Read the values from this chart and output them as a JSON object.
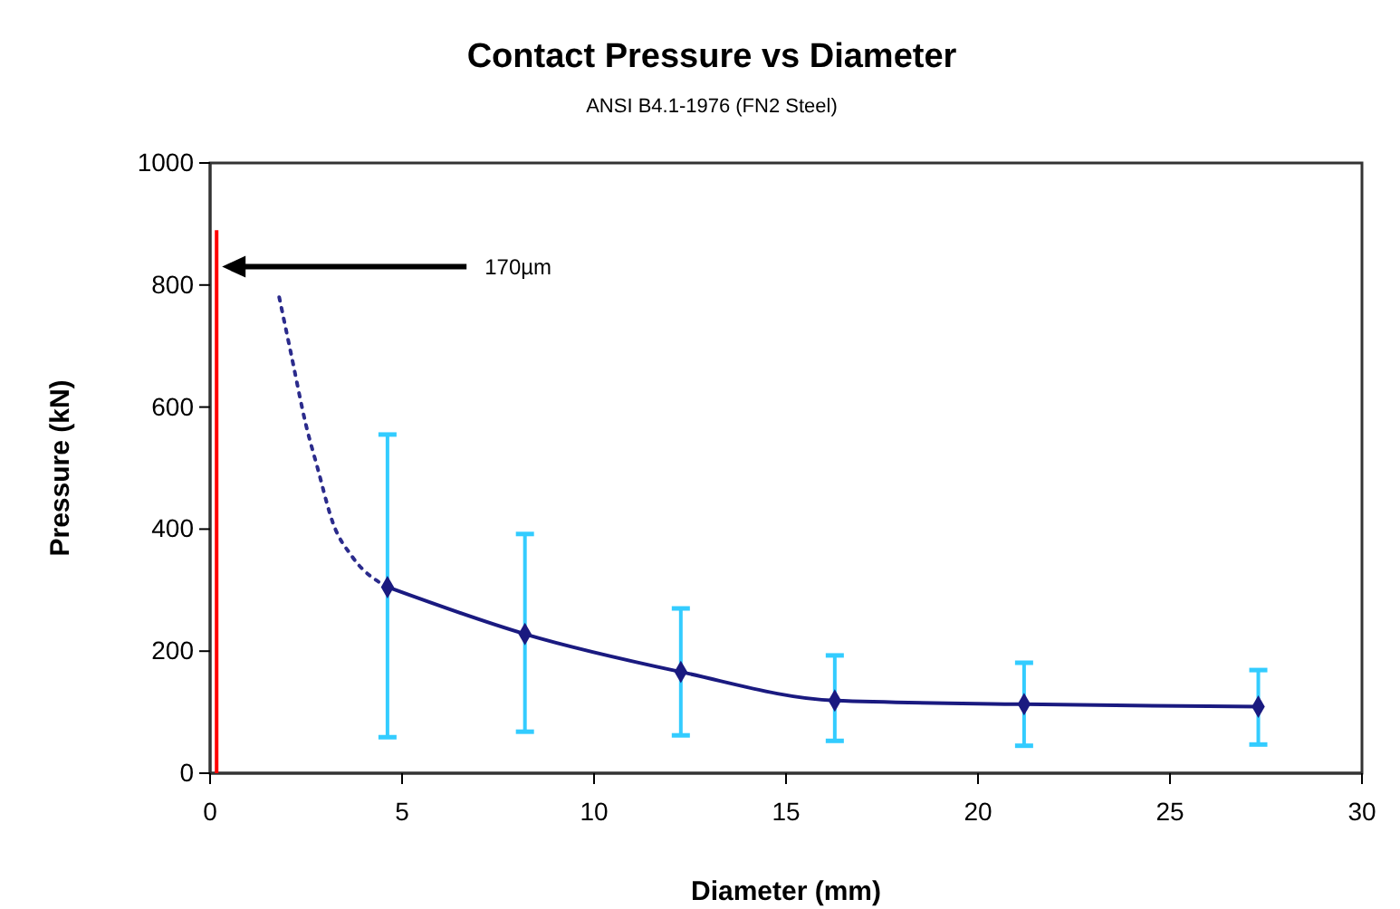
{
  "chart_data": {
    "type": "line",
    "title": "Contact Pressure vs Diameter",
    "subtitle": "ANSI B4.1-1976 (FN2 Steel)",
    "xlabel": "Diameter (mm)",
    "ylabel": "Pressure (kN)",
    "xlim": [
      0,
      30
    ],
    "xticks": [
      0,
      5,
      10,
      15,
      20,
      25,
      30
    ],
    "ylim": [
      0,
      1000
    ],
    "yticks": [
      0,
      200,
      400,
      600,
      800,
      1000
    ],
    "grid": false,
    "series": [
      {
        "color": "#2b2b8c",
        "marker": "none",
        "line_style": "dotted",
        "x": [
          1.8,
          2.1,
          2.5,
          2.8,
          3.2,
          3.7,
          4.62
        ],
        "values": [
          780,
          690,
          570,
          500,
          410,
          355,
          305
        ]
      },
      {
        "color": "#1a1a80",
        "marker": "diamond",
        "line_style": "solid",
        "x": [
          4.62,
          8.2,
          12.26,
          16.27,
          21.2,
          27.3
        ],
        "values": [
          305,
          228,
          166,
          119,
          113,
          109
        ],
        "errors": [
          [
            59,
            555
          ],
          [
            68,
            392
          ],
          [
            62,
            270
          ],
          [
            53,
            193
          ],
          [
            45,
            181
          ],
          [
            47,
            169
          ]
        ]
      }
    ],
    "ref_lines": [
      {
        "axis": "x",
        "value": 0.17,
        "color": "#ff0000"
      }
    ],
    "annotations": [
      "170µm"
    ]
  }
}
